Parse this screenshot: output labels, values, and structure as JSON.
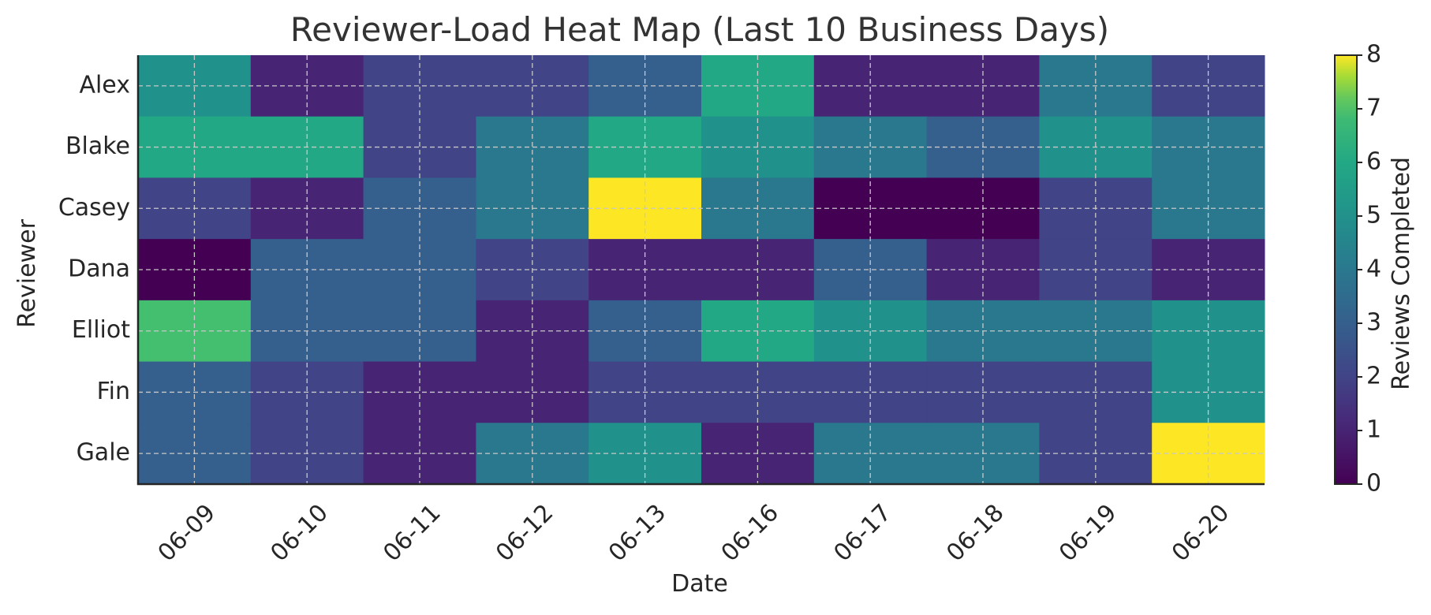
{
  "chart_data": {
    "type": "heatmap",
    "title": "Reviewer-Load Heat Map (Last 10 Business Days)",
    "xlabel": "Date",
    "ylabel": "Reviewer",
    "colorbar_label": "Reviews Completed",
    "colormap": "viridis",
    "grid": true,
    "x": [
      "06-09",
      "06-10",
      "06-11",
      "06-12",
      "06-13",
      "06-16",
      "06-17",
      "06-18",
      "06-19",
      "06-20"
    ],
    "y": [
      "Alex",
      "Blake",
      "Casey",
      "Dana",
      "Elliot",
      "Fin",
      "Gale"
    ],
    "values": [
      [
        5,
        1,
        2,
        2,
        3,
        6,
        1,
        1,
        4,
        2
      ],
      [
        6,
        6,
        2,
        4,
        6,
        5,
        4,
        3,
        5,
        4
      ],
      [
        2,
        1,
        3,
        4,
        8,
        4,
        0,
        0,
        2,
        4
      ],
      [
        0,
        3,
        3,
        2,
        1,
        1,
        3,
        1,
        2,
        1
      ],
      [
        7,
        3,
        3,
        1,
        3,
        6,
        5,
        4,
        4,
        5
      ],
      [
        3,
        2,
        1,
        1,
        2,
        2,
        2,
        2,
        2,
        5
      ],
      [
        3,
        2,
        1,
        4,
        5,
        1,
        4,
        4,
        2,
        8
      ]
    ],
    "colorbar_range": [
      0,
      8
    ],
    "colorbar_ticks": [
      "0",
      "1",
      "2",
      "3",
      "4",
      "5",
      "6",
      "7",
      "8"
    ]
  }
}
